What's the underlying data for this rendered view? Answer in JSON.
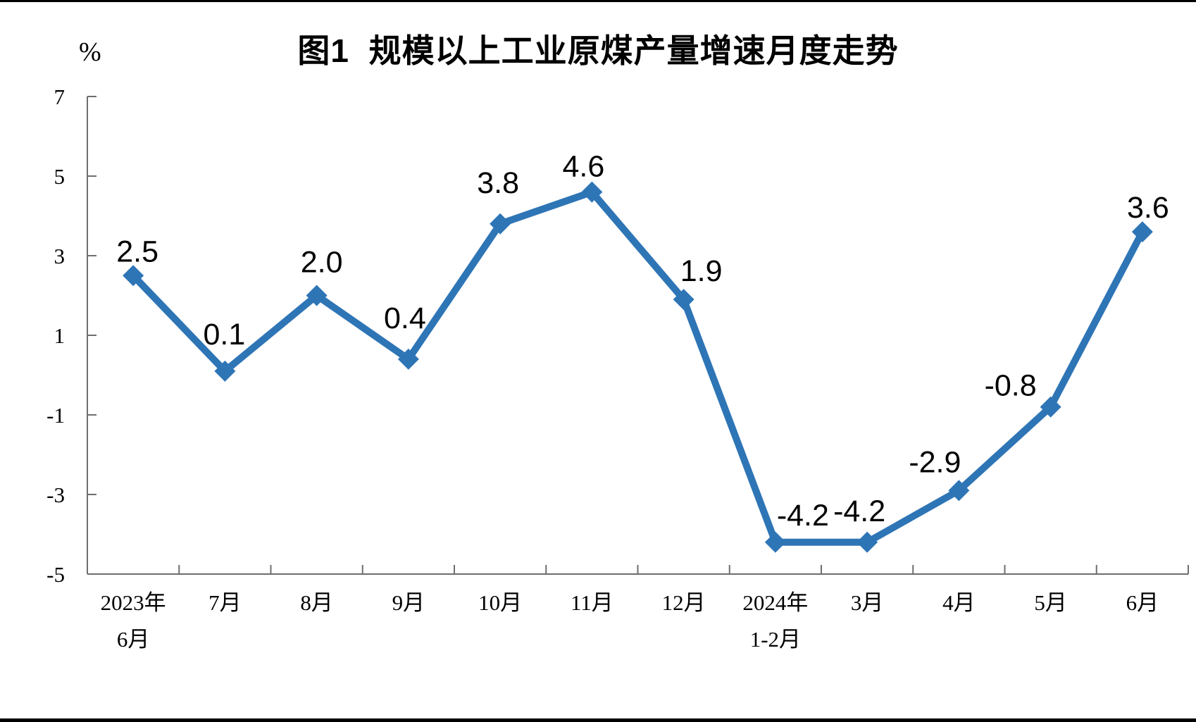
{
  "chart_data": {
    "type": "line",
    "title": "图1  规模以上工业原煤产量增速月度走势",
    "ylabel": "%",
    "xlabel": "",
    "categories": [
      "2023年\n6月",
      "7月",
      "8月",
      "9月",
      "10月",
      "11月",
      "12月",
      "2024年\n1-2月",
      "3月",
      "4月",
      "5月",
      "6月"
    ],
    "values": [
      2.5,
      0.1,
      2.0,
      0.4,
      3.8,
      4.6,
      1.9,
      -4.2,
      -4.2,
      -2.9,
      -0.8,
      3.6
    ],
    "data_labels": [
      "2.5",
      "0.1",
      "2.0",
      "0.4",
      "3.8",
      "4.6",
      "1.9",
      "-4.2",
      "-4.2",
      "-2.9",
      "-0.8",
      "3.6"
    ],
    "ylim": [
      -5,
      7
    ],
    "ytick_interval": 2,
    "yticks": [
      "7",
      "5",
      "3",
      "1",
      "-1",
      "-3",
      "-5"
    ],
    "ytick_values": [
      7,
      5,
      3,
      1,
      -1,
      -3,
      -5
    ],
    "grid": false,
    "legend_position": "none",
    "marker": "diamond",
    "line_color": "#2E75B6",
    "axis_color": "#6E6E6E",
    "text_color": "#000000",
    "background_color": "#FFFFFF"
  }
}
